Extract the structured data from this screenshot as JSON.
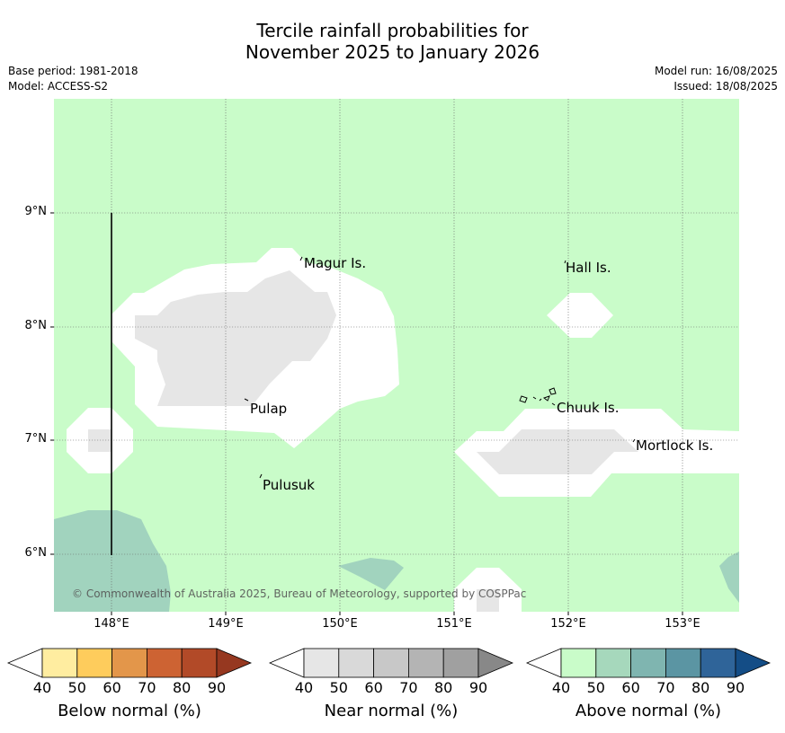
{
  "title_line1": "Tercile rainfall probabilities for",
  "title_line2": "November 2025 to January 2026",
  "base_period": "Base period: 1981-2018",
  "model": "Model: ACCESS-S2",
  "model_run": "Model run: 16/08/2025",
  "issued": "Issued: 18/08/2025",
  "map": {
    "lat_labels": [
      "9°N",
      "8°N",
      "7°N",
      "6°N"
    ],
    "lon_labels": [
      "148°E",
      "149°E",
      "150°E",
      "151°E",
      "152°E",
      "153°E"
    ],
    "places": [
      "Magur Is.",
      "Hall Is.",
      "Pulap",
      "Chuuk Is.",
      "Mortlock Is.",
      "Pulusuk"
    ],
    "copyright": "© Commonwealth of Australia 2025, Bureau of Meteorology, supported by COSPPac"
  },
  "colorbars": [
    {
      "title": "Below normal (%)",
      "ticks": [
        "40",
        "50",
        "60",
        "70",
        "80",
        "90"
      ],
      "colors": [
        "#ffffff",
        "#ffeda0",
        "#fecc5c",
        "#e3964a",
        "#cd6333",
        "#b24a28",
        "#963820"
      ]
    },
    {
      "title": "Near normal (%)",
      "ticks": [
        "40",
        "50",
        "60",
        "70",
        "80",
        "90"
      ],
      "colors": [
        "#ffffff",
        "#e6e6e6",
        "#d9d9d9",
        "#c8c8c8",
        "#b4b4b4",
        "#a0a0a0",
        "#888888"
      ]
    },
    {
      "title": "Above normal (%)",
      "ticks": [
        "40",
        "50",
        "60",
        "70",
        "80",
        "90"
      ],
      "colors": [
        "#ffffff",
        "#c9fcc9",
        "#a6d8bc",
        "#7fb5b0",
        "#5b95a3",
        "#2f6499",
        "#144d86"
      ]
    }
  ]
}
